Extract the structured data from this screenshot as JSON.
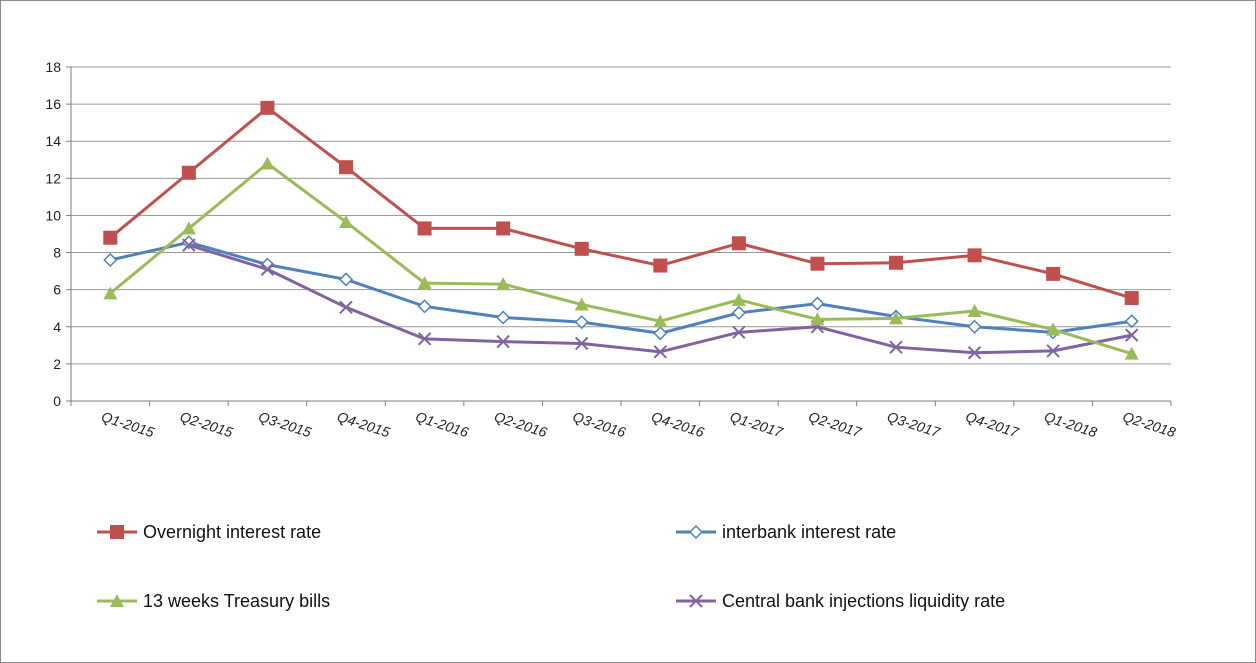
{
  "chart_data": {
    "type": "line",
    "title": "",
    "xlabel": "",
    "ylabel": "",
    "ylim": [
      0,
      18
    ],
    "yticks": [
      0,
      2,
      4,
      6,
      8,
      10,
      12,
      14,
      16,
      18
    ],
    "grid": "horizontal",
    "legend_position": "bottom",
    "categories": [
      "Q1-2015",
      "Q2-2015",
      "Q3-2015",
      "Q4-2015",
      "Q1-2016",
      "Q2-2016",
      "Q3-2016",
      "Q4-2016",
      "Q1-2017",
      "Q2-2017",
      "Q3-2017",
      "Q4-2017",
      "Q1-2018",
      "Q2-2018"
    ],
    "series": [
      {
        "name": "Overnight interest rate",
        "color": "#c0504d",
        "marker": "square",
        "values": [
          8.8,
          12.3,
          15.8,
          12.6,
          9.3,
          9.3,
          8.2,
          7.3,
          8.5,
          7.4,
          7.45,
          7.85,
          6.85,
          5.55
        ]
      },
      {
        "name": "interbank interest rate",
        "color": "#4f81bd",
        "marker": "diamond-open",
        "values": [
          7.6,
          8.55,
          7.35,
          6.55,
          5.1,
          4.5,
          4.25,
          3.65,
          4.75,
          5.25,
          4.55,
          4.0,
          3.7,
          4.3
        ]
      },
      {
        "name": "13 weeks Treasury bills",
        "color": "#9bbb59",
        "marker": "triangle",
        "values": [
          5.8,
          9.3,
          12.8,
          9.65,
          6.35,
          6.3,
          5.2,
          4.3,
          5.45,
          4.4,
          4.45,
          4.85,
          3.85,
          2.55
        ]
      },
      {
        "name": "Central bank injections liquidity rate",
        "color": "#8064a2",
        "marker": "x",
        "values": [
          null,
          8.4,
          7.1,
          5.05,
          3.35,
          3.2,
          3.1,
          2.65,
          3.7,
          4.0,
          2.9,
          2.6,
          2.7,
          3.55
        ]
      }
    ]
  }
}
